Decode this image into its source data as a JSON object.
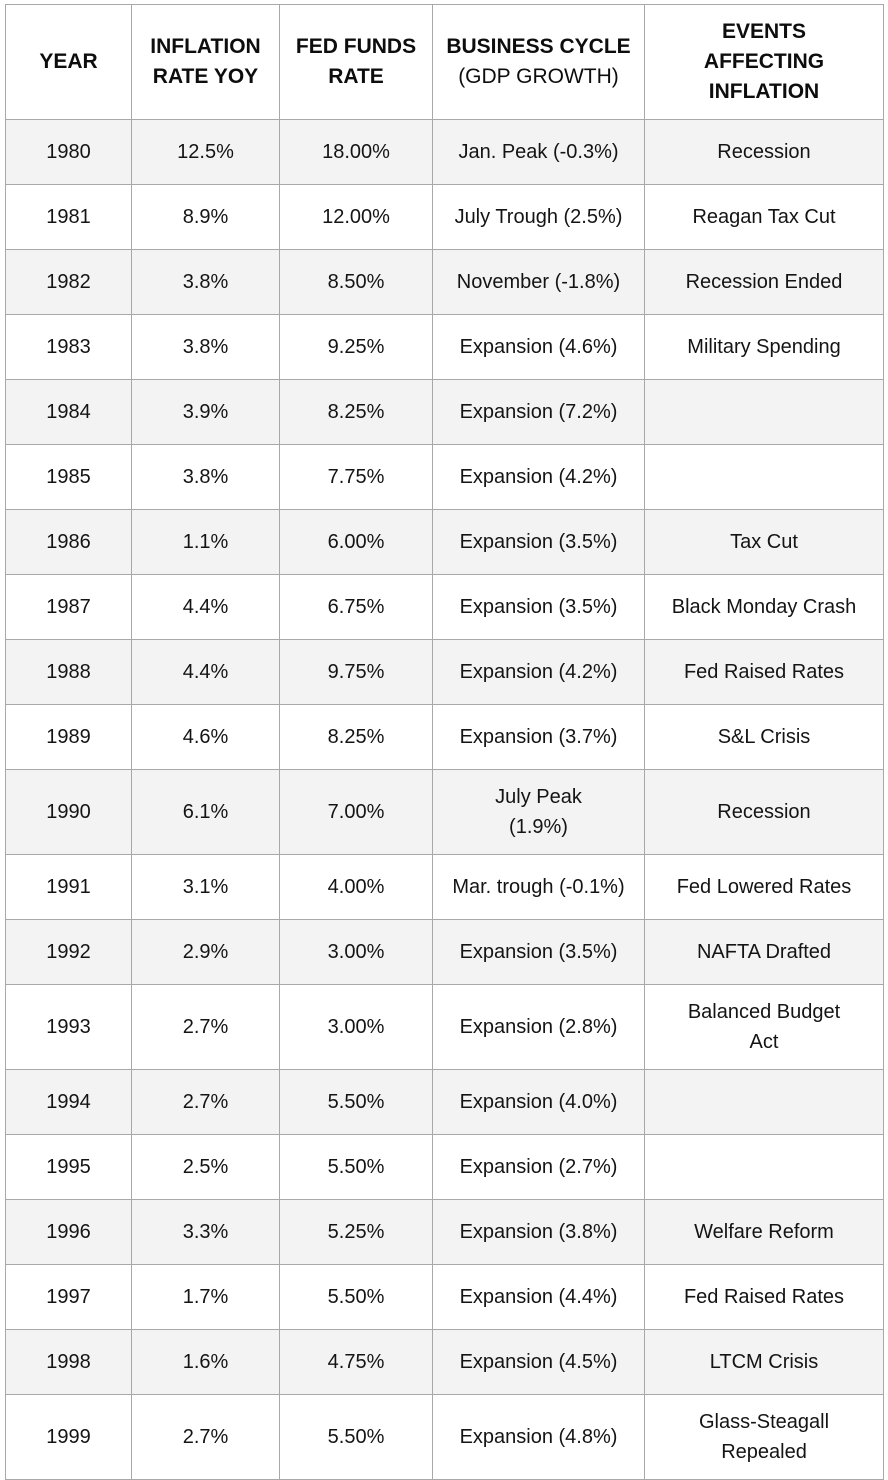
{
  "table": {
    "headers": [
      {
        "label": "YEAR",
        "sub": ""
      },
      {
        "label": "INFLATION RATE YOY",
        "sub": ""
      },
      {
        "label": "FED FUNDS RATE",
        "sub": ""
      },
      {
        "label": "BUSINESS CYCLE",
        "sub": "(GDP GROWTH)"
      },
      {
        "label": "EVENTS AFFECTING INFLATION",
        "sub": ""
      }
    ],
    "colors": {
      "stripe": "#f3f3f3",
      "row_alt": "#ffffff",
      "border": "#a8a8a8",
      "text": "#141414",
      "header_text": "#0d0d0d"
    }
  },
  "chart_data": {
    "type": "table",
    "title": "",
    "columns": [
      "YEAR",
      "INFLATION RATE YOY",
      "FED FUNDS RATE",
      "BUSINESS CYCLE (GDP GROWTH)",
      "EVENTS AFFECTING INFLATION"
    ],
    "rows": [
      {
        "year": "1980",
        "inflation_rate_yoy": "12.5%",
        "fed_funds_rate": "18.00%",
        "business_cycle": "Jan. Peak (-0.3%)",
        "events": "Recession"
      },
      {
        "year": "1981",
        "inflation_rate_yoy": "8.9%",
        "fed_funds_rate": "12.00%",
        "business_cycle": "July Trough (2.5%)",
        "events": "Reagan Tax Cut"
      },
      {
        "year": "1982",
        "inflation_rate_yoy": "3.8%",
        "fed_funds_rate": "8.50%",
        "business_cycle": "November (-1.8%)",
        "events": "Recession Ended"
      },
      {
        "year": "1983",
        "inflation_rate_yoy": "3.8%",
        "fed_funds_rate": "9.25%",
        "business_cycle": "Expansion (4.6%)",
        "events": "Military Spending"
      },
      {
        "year": "1984",
        "inflation_rate_yoy": "3.9%",
        "fed_funds_rate": "8.25%",
        "business_cycle": "Expansion (7.2%)",
        "events": ""
      },
      {
        "year": "1985",
        "inflation_rate_yoy": "3.8%",
        "fed_funds_rate": "7.75%",
        "business_cycle": "Expansion (4.2%)",
        "events": ""
      },
      {
        "year": "1986",
        "inflation_rate_yoy": "1.1%",
        "fed_funds_rate": "6.00%",
        "business_cycle": "Expansion (3.5%)",
        "events": "Tax Cut"
      },
      {
        "year": "1987",
        "inflation_rate_yoy": "4.4%",
        "fed_funds_rate": "6.75%",
        "business_cycle": "Expansion (3.5%)",
        "events": "Black Monday Crash"
      },
      {
        "year": "1988",
        "inflation_rate_yoy": "4.4%",
        "fed_funds_rate": "9.75%",
        "business_cycle": "Expansion (4.2%)",
        "events": "Fed Raised Rates"
      },
      {
        "year": "1989",
        "inflation_rate_yoy": "4.6%",
        "fed_funds_rate": "8.25%",
        "business_cycle": "Expansion (3.7%)",
        "events": "S&L Crisis"
      },
      {
        "year": "1990",
        "inflation_rate_yoy": "6.1%",
        "fed_funds_rate": "7.00%",
        "business_cycle": "July Peak\n(1.9%)",
        "events": "Recession"
      },
      {
        "year": "1991",
        "inflation_rate_yoy": "3.1%",
        "fed_funds_rate": "4.00%",
        "business_cycle": "Mar. trough (-0.1%)",
        "events": "Fed Lowered Rates"
      },
      {
        "year": "1992",
        "inflation_rate_yoy": "2.9%",
        "fed_funds_rate": "3.00%",
        "business_cycle": "Expansion (3.5%)",
        "events": "NAFTA Drafted"
      },
      {
        "year": "1993",
        "inflation_rate_yoy": "2.7%",
        "fed_funds_rate": "3.00%",
        "business_cycle": "Expansion (2.8%)",
        "events": "Balanced Budget\nAct"
      },
      {
        "year": "1994",
        "inflation_rate_yoy": "2.7%",
        "fed_funds_rate": "5.50%",
        "business_cycle": "Expansion (4.0%)",
        "events": ""
      },
      {
        "year": "1995",
        "inflation_rate_yoy": "2.5%",
        "fed_funds_rate": "5.50%",
        "business_cycle": "Expansion (2.7%)",
        "events": ""
      },
      {
        "year": "1996",
        "inflation_rate_yoy": "3.3%",
        "fed_funds_rate": "5.25%",
        "business_cycle": "Expansion (3.8%)",
        "events": "Welfare Reform"
      },
      {
        "year": "1997",
        "inflation_rate_yoy": "1.7%",
        "fed_funds_rate": "5.50%",
        "business_cycle": "Expansion (4.4%)",
        "events": "Fed Raised Rates"
      },
      {
        "year": "1998",
        "inflation_rate_yoy": "1.6%",
        "fed_funds_rate": "4.75%",
        "business_cycle": "Expansion (4.5%)",
        "events": "LTCM Crisis"
      },
      {
        "year": "1999",
        "inflation_rate_yoy": "2.7%",
        "fed_funds_rate": "5.50%",
        "business_cycle": "Expansion (4.8%)",
        "events": "Glass-Steagall\nRepealed"
      }
    ]
  }
}
